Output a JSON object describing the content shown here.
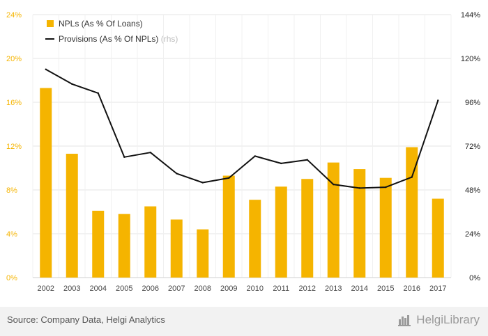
{
  "chart_data": {
    "type": "bar",
    "categories": [
      "2002",
      "2003",
      "2004",
      "2005",
      "2006",
      "2007",
      "2008",
      "2009",
      "2010",
      "2011",
      "2012",
      "2013",
      "2014",
      "2015",
      "2016",
      "2017"
    ],
    "series": [
      {
        "name": "NPLs (As % Of Loans)",
        "type": "bar",
        "axis": "left",
        "color": "#f5b400",
        "values": [
          17.3,
          11.3,
          6.1,
          5.8,
          6.5,
          5.3,
          4.4,
          9.3,
          7.1,
          8.3,
          9.0,
          10.5,
          9.9,
          9.1,
          11.9,
          7.2
        ]
      },
      {
        "name": "Provisions (As % Of NPLs)",
        "name_suffix": "(rhs)",
        "type": "line",
        "axis": "right",
        "color": "#111111",
        "values": [
          114,
          106,
          101,
          66,
          68.5,
          57,
          52,
          54.5,
          66.5,
          62.5,
          64.5,
          51,
          49,
          49.5,
          55,
          97
        ]
      }
    ],
    "yleft": {
      "ylim": [
        0,
        24
      ],
      "ticks": [
        "0%",
        "4%",
        "8%",
        "12%",
        "16%",
        "20%",
        "24%"
      ]
    },
    "yright": {
      "ylim": [
        0,
        144
      ],
      "ticks": [
        "0%",
        "24%",
        "48%",
        "72%",
        "96%",
        "120%",
        "144%"
      ]
    },
    "grid": true,
    "legend_position": "top-left"
  },
  "footer": {
    "source": "Source: Company Data, Helgi Analytics",
    "brand": "HelgiLibrary"
  },
  "colors": {
    "accent": "#f5b400",
    "line": "#111111",
    "grid": "#e6e6e6"
  }
}
